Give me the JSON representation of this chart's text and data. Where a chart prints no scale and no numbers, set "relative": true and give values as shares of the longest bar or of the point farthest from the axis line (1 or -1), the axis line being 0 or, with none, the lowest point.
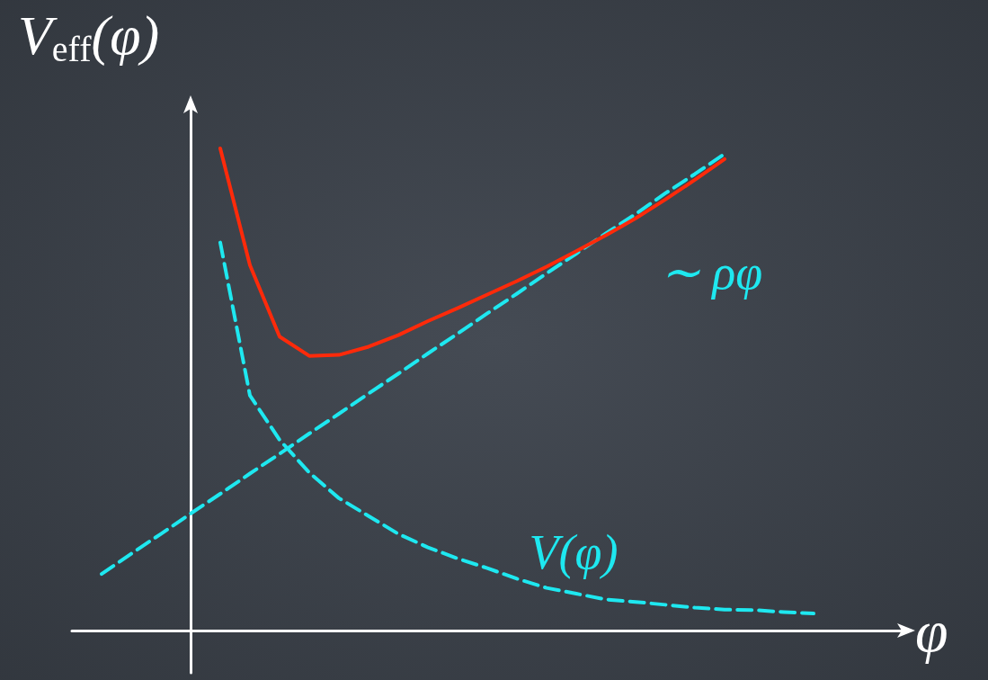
{
  "chart_data": {
    "type": "line",
    "relative": true,
    "xlabel": "φ",
    "ylabel": "V$_{eff}$(φ)",
    "grid": false,
    "legend": false,
    "marker": "none",
    "categories": [
      null,
      null,
      null,
      null,
      null,
      null,
      null,
      null,
      null,
      null,
      null,
      null,
      null,
      null,
      null,
      null,
      null,
      null,
      null,
      null,
      null,
      null,
      null,
      null,
      null,
      null,
      null,
      null,
      null
    ],
    "series": [
      {
        "color": "#ff2a0a",
        "line_style": "solid",
        "values": [
          null,
          null,
          null,
          null,
          null,
          1,
          0.758,
          0.61,
          0.57,
          0.572,
          0.589,
          0.613,
          0.642,
          0.669,
          0.697,
          0.725,
          0.755,
          0.787,
          0.82,
          0.855,
          0.894,
          0.935,
          0.978,
          null,
          null,
          null,
          null,
          null,
          null
        ]
      },
      {
        "name": "∼ ρφ",
        "color": "#1ee8f0",
        "line_style": "dashed",
        "values": [
          null,
          0.118,
          0.16,
          0.201,
          0.243,
          0.284,
          0.326,
          0.367,
          0.409,
          0.45,
          0.492,
          0.533,
          0.575,
          0.616,
          0.658,
          0.699,
          0.741,
          0.782,
          0.824,
          0.864,
          0.907,
          0.947,
          0.989,
          null,
          null,
          null,
          null,
          null,
          null
        ]
      },
      {
        "name": "V(φ)",
        "color": "#1ee8f0",
        "line_style": "dashed",
        "values": [
          null,
          null,
          null,
          null,
          null,
          0.805,
          0.488,
          0.396,
          0.328,
          0.275,
          0.238,
          0.201,
          0.173,
          0.15,
          0.13,
          0.108,
          0.089,
          0.077,
          0.065,
          0.06,
          0.054,
          0.048,
          0.044,
          0.043,
          0.039,
          0.036,
          null,
          null,
          null
        ]
      }
    ]
  }
}
